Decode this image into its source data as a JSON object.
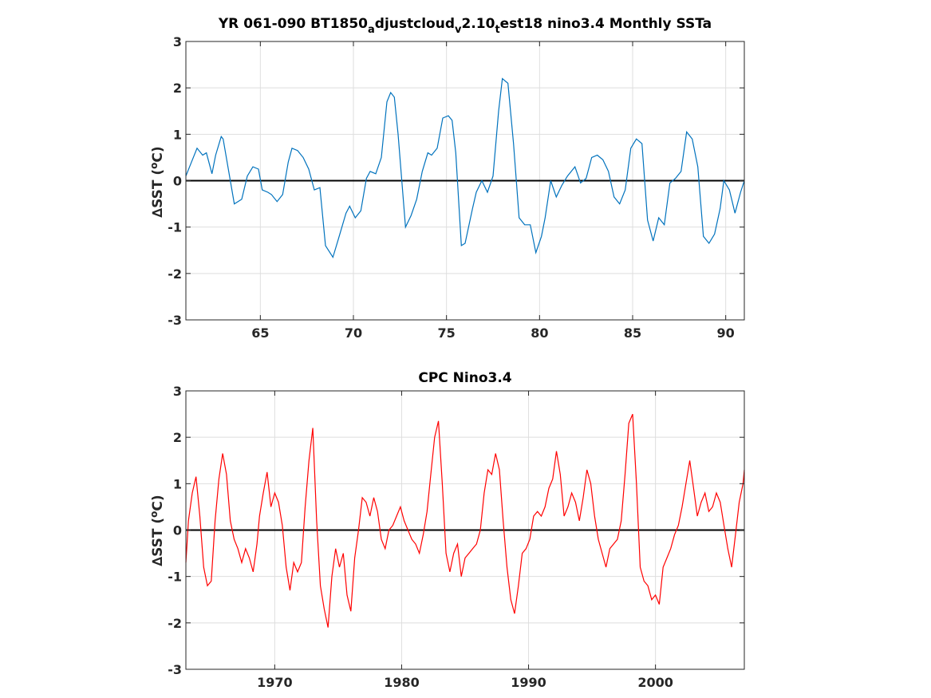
{
  "chart_data": [
    {
      "type": "line",
      "title": "YR 061-090 BT1850",
      "title_sub_1": "a",
      "title_mid_1": "djustcloud",
      "title_sub_2": "v",
      "title_mid_2": "2.10",
      "title_sub_3": "t",
      "title_tail": "est18 nino3.4 Monthly SSTa",
      "ylabel_delta": "∆",
      "ylabel_main": "SST (",
      "ylabel_sup": "o",
      "ylabel_unit": "C)",
      "xlim": [
        61,
        91
      ],
      "ylim": [
        -3,
        3
      ],
      "xticks": [
        65,
        70,
        75,
        80,
        85,
        90
      ],
      "xtick_labels": [
        "65",
        "70",
        "75",
        "80",
        "85",
        "90"
      ],
      "yticks": [
        -3,
        -2,
        -1,
        0,
        1,
        2,
        3
      ],
      "ytick_labels": [
        "-3",
        "-2",
        "-1",
        "0",
        "1",
        "2",
        "3"
      ],
      "grid": true,
      "zero_line": true,
      "line_color": "#0072BD",
      "series": [
        {
          "x": [
            61.0,
            61.3,
            61.6,
            61.9,
            62.1,
            62.4,
            62.6,
            62.9,
            63.0,
            63.3,
            63.6,
            63.8,
            64.0,
            64.3,
            64.6,
            64.9,
            65.1,
            65.4,
            65.6,
            65.9,
            66.2,
            66.5,
            66.7,
            67.0,
            67.3,
            67.6,
            67.9,
            68.2,
            68.5,
            68.9,
            69.2,
            69.6,
            69.8,
            70.1,
            70.4,
            70.7,
            70.9,
            71.2,
            71.5,
            71.8,
            72.0,
            72.2,
            72.4,
            72.8,
            73.1,
            73.4,
            73.7,
            74.0,
            74.2,
            74.5,
            74.8,
            75.1,
            75.3,
            75.5,
            75.8,
            76.0,
            76.4,
            76.6,
            76.9,
            77.2,
            77.5,
            77.8,
            78.0,
            78.3,
            78.6,
            78.9,
            79.2,
            79.5,
            79.8,
            80.1,
            80.3,
            80.6,
            80.9,
            81.2,
            81.5,
            81.9,
            82.2,
            82.5,
            82.8,
            83.1,
            83.4,
            83.7,
            84.0,
            84.3,
            84.6,
            84.9,
            85.2,
            85.5,
            85.8,
            86.1,
            86.4,
            86.7,
            87.0,
            87.3,
            87.6,
            87.9,
            88.2,
            88.5,
            88.8,
            89.1,
            89.4,
            89.7,
            89.9,
            90.2,
            90.5,
            90.8,
            91.0
          ],
          "y": [
            0.1,
            0.4,
            0.7,
            0.55,
            0.6,
            0.15,
            0.55,
            0.95,
            0.9,
            0.2,
            -0.5,
            -0.45,
            -0.4,
            0.1,
            0.3,
            0.25,
            -0.2,
            -0.25,
            -0.3,
            -0.45,
            -0.3,
            0.4,
            0.7,
            0.65,
            0.5,
            0.25,
            -0.2,
            -0.15,
            -1.4,
            -1.65,
            -1.25,
            -0.7,
            -0.55,
            -0.8,
            -0.65,
            0.05,
            0.2,
            0.15,
            0.5,
            1.7,
            1.9,
            1.8,
            1.0,
            -1.0,
            -0.75,
            -0.4,
            0.2,
            0.6,
            0.55,
            0.7,
            1.35,
            1.4,
            1.3,
            0.6,
            -1.4,
            -1.35,
            -0.6,
            -0.25,
            0.0,
            -0.25,
            0.1,
            1.5,
            2.2,
            2.1,
            0.8,
            -0.8,
            -0.95,
            -0.95,
            -1.55,
            -1.2,
            -0.8,
            0.0,
            -0.35,
            -0.1,
            0.1,
            0.3,
            -0.05,
            0.05,
            0.5,
            0.55,
            0.45,
            0.2,
            -0.35,
            -0.5,
            -0.2,
            0.7,
            0.9,
            0.8,
            -0.85,
            -1.3,
            -0.8,
            -0.95,
            -0.05,
            0.05,
            0.2,
            1.05,
            0.9,
            0.3,
            -1.2,
            -1.35,
            -1.15,
            -0.6,
            0.0,
            -0.2,
            -0.7,
            -0.25,
            0.0
          ]
        }
      ]
    },
    {
      "type": "line",
      "title": "CPC Nino3.4",
      "ylabel_delta": "∆",
      "ylabel_main": "SST (",
      "ylabel_sup": "o",
      "ylabel_unit": "C)",
      "xlim": [
        1963,
        2007
      ],
      "ylim": [
        -3,
        3
      ],
      "xticks": [
        1970,
        1980,
        1990,
        2000
      ],
      "xtick_labels": [
        "1970",
        "1980",
        "1990",
        "2000"
      ],
      "yticks": [
        -3,
        -2,
        -1,
        0,
        1,
        2,
        3
      ],
      "ytick_labels": [
        "-3",
        "-2",
        "-1",
        "0",
        "1",
        "2",
        "3"
      ],
      "grid": true,
      "zero_line": true,
      "line_color": "#FF0000",
      "series": [
        {
          "x": [
            1963.0,
            1963.2,
            1963.5,
            1963.8,
            1964.1,
            1964.4,
            1964.7,
            1965.0,
            1965.3,
            1965.6,
            1965.9,
            1966.2,
            1966.5,
            1966.8,
            1967.1,
            1967.4,
            1967.7,
            1968.0,
            1968.3,
            1968.6,
            1968.8,
            1969.1,
            1969.4,
            1969.7,
            1970.0,
            1970.3,
            1970.6,
            1970.9,
            1971.2,
            1971.5,
            1971.8,
            1972.1,
            1972.4,
            1972.7,
            1973.0,
            1973.3,
            1973.6,
            1973.9,
            1974.2,
            1974.5,
            1974.8,
            1975.1,
            1975.4,
            1975.7,
            1976.0,
            1976.3,
            1976.6,
            1976.9,
            1977.2,
            1977.5,
            1977.8,
            1978.1,
            1978.4,
            1978.7,
            1979.0,
            1979.3,
            1979.6,
            1979.9,
            1980.2,
            1980.5,
            1980.8,
            1981.1,
            1981.4,
            1981.7,
            1982.0,
            1982.3,
            1982.6,
            1982.9,
            1983.2,
            1983.5,
            1983.8,
            1984.1,
            1984.4,
            1984.7,
            1985.0,
            1985.3,
            1985.6,
            1985.9,
            1986.2,
            1986.5,
            1986.8,
            1987.1,
            1987.4,
            1987.7,
            1988.0,
            1988.3,
            1988.6,
            1988.9,
            1989.2,
            1989.5,
            1989.8,
            1990.1,
            1990.4,
            1990.7,
            1991.0,
            1991.3,
            1991.6,
            1991.9,
            1992.2,
            1992.5,
            1992.8,
            1993.1,
            1993.4,
            1993.7,
            1994.0,
            1994.3,
            1994.6,
            1994.9,
            1995.2,
            1995.5,
            1995.8,
            1996.1,
            1996.4,
            1996.7,
            1997.0,
            1997.3,
            1997.6,
            1997.9,
            1998.2,
            1998.5,
            1998.8,
            1999.1,
            1999.4,
            1999.7,
            2000.0,
            2000.3,
            2000.6,
            2000.9,
            2001.2,
            2001.5,
            2001.8,
            2002.1,
            2002.4,
            2002.7,
            2003.0,
            2003.3,
            2003.6,
            2003.9,
            2004.2,
            2004.5,
            2004.8,
            2005.1,
            2005.4,
            2005.7,
            2006.0,
            2006.3,
            2006.6,
            2006.9,
            2007.0
          ],
          "y": [
            -0.7,
            0.2,
            0.8,
            1.15,
            0.3,
            -0.8,
            -1.2,
            -1.1,
            0.2,
            1.1,
            1.65,
            1.2,
            0.2,
            -0.2,
            -0.4,
            -0.7,
            -0.4,
            -0.6,
            -0.9,
            -0.3,
            0.3,
            0.8,
            1.25,
            0.5,
            0.8,
            0.6,
            0.1,
            -0.8,
            -1.3,
            -0.7,
            -0.9,
            -0.7,
            0.5,
            1.5,
            2.2,
            0.2,
            -1.2,
            -1.7,
            -2.1,
            -1.0,
            -0.4,
            -0.8,
            -0.5,
            -1.4,
            -1.75,
            -0.6,
            0.0,
            0.7,
            0.6,
            0.3,
            0.7,
            0.4,
            -0.2,
            -0.4,
            0.0,
            0.1,
            0.3,
            0.5,
            0.2,
            0.0,
            -0.2,
            -0.3,
            -0.5,
            -0.1,
            0.4,
            1.2,
            2.0,
            2.35,
            1.0,
            -0.5,
            -0.9,
            -0.5,
            -0.3,
            -1.0,
            -0.6,
            -0.5,
            -0.4,
            -0.3,
            0.0,
            0.8,
            1.3,
            1.2,
            1.65,
            1.3,
            0.2,
            -0.8,
            -1.5,
            -1.8,
            -1.2,
            -0.5,
            -0.4,
            -0.2,
            0.3,
            0.4,
            0.3,
            0.5,
            0.9,
            1.1,
            1.7,
            1.2,
            0.3,
            0.5,
            0.8,
            0.6,
            0.2,
            0.7,
            1.3,
            1.0,
            0.3,
            -0.2,
            -0.5,
            -0.8,
            -0.4,
            -0.3,
            -0.2,
            0.2,
            1.2,
            2.3,
            2.5,
            1.0,
            -0.8,
            -1.1,
            -1.2,
            -1.5,
            -1.4,
            -1.6,
            -0.8,
            -0.6,
            -0.4,
            -0.1,
            0.1,
            0.5,
            1.0,
            1.5,
            0.9,
            0.3,
            0.6,
            0.8,
            0.4,
            0.5,
            0.8,
            0.6,
            0.1,
            -0.4,
            -0.8,
            -0.1,
            0.6,
            1.0,
            1.3
          ]
        }
      ]
    }
  ]
}
